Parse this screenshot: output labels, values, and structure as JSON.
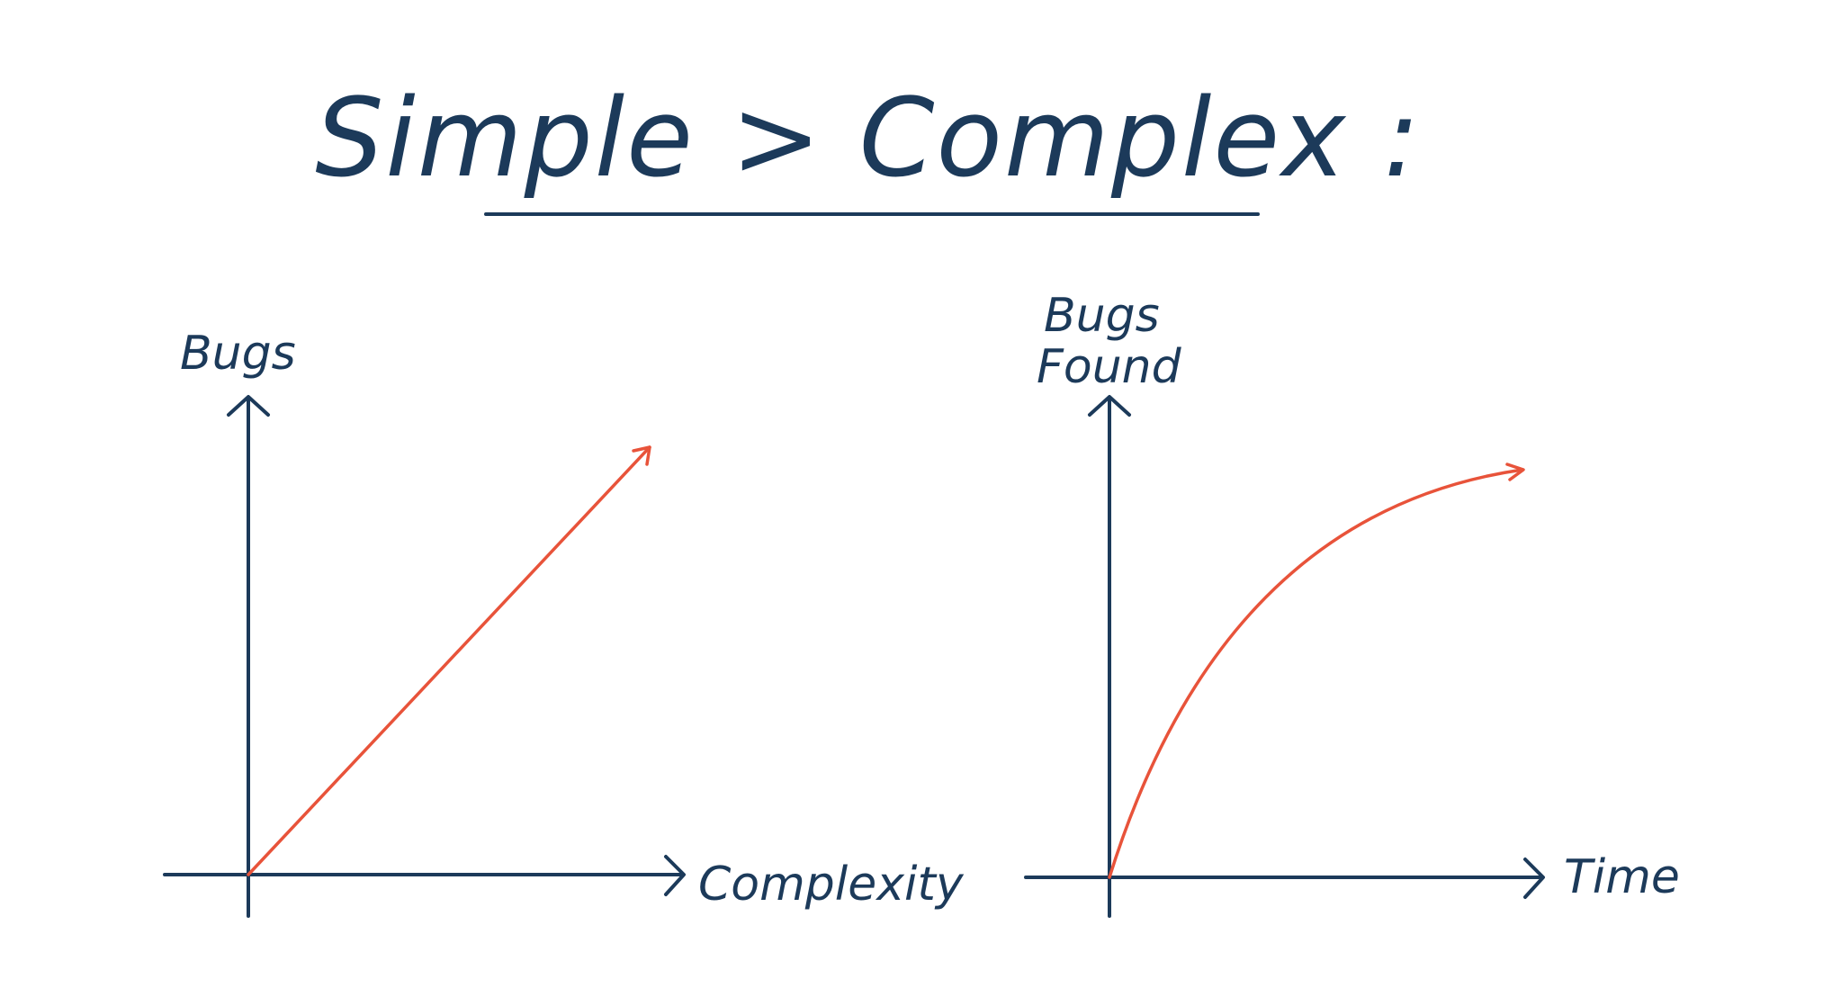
{
  "title": "Simple > Complex :",
  "colors": {
    "ink": "#1c3a5a",
    "curve": "#e8533a",
    "background": "#ffffff"
  },
  "diagrams": [
    {
      "y_label": "Bugs",
      "x_label": "Complexity",
      "curve_shape": "linear increasing"
    },
    {
      "y_label_lines": [
        "Bugs",
        "Found"
      ],
      "x_label": "Time",
      "curve_shape": "concave increasing"
    }
  ]
}
